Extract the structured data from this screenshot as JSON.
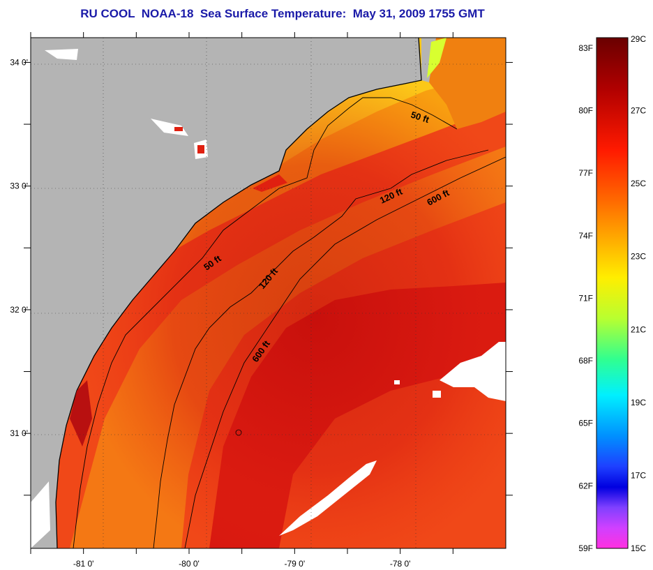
{
  "title": "RU COOL  NOAA-18  Sea Surface Temperature:  May 31, 2009 1755 GMT",
  "map": {
    "lon_range": [
      -81.5,
      -77.0
    ],
    "lat_range": [
      30.07,
      34.2
    ],
    "lon_ticks": [
      {
        "value": -81,
        "label": "-81 0'"
      },
      {
        "value": -80,
        "label": "-80 0'"
      },
      {
        "value": -79,
        "label": "-79 0'"
      },
      {
        "value": -78,
        "label": "-78 0'"
      }
    ],
    "lat_ticks": [
      {
        "value": 34,
        "label": "34 0'"
      },
      {
        "value": 33,
        "label": "33 0'"
      },
      {
        "value": 32,
        "label": "32 0'"
      },
      {
        "value": 31,
        "label": "31 0'"
      }
    ],
    "contour_labels": [
      "50 ft",
      "120 ft",
      "600 ft",
      "50 ft",
      "120 ft",
      "600 ft"
    ],
    "colors": {
      "land": "#b4b4b4",
      "cloud": "#ffffff",
      "coast": "#000000"
    }
  },
  "colorbar": {
    "celsius": [
      "29C",
      "27C",
      "25C",
      "23C",
      "21C",
      "19C",
      "17C",
      "15C"
    ],
    "fahrenheit": [
      "83F",
      "80F",
      "77F",
      "74F",
      "71F",
      "68F",
      "65F",
      "62F",
      "59F"
    ],
    "stops": [
      "#7a0000",
      "#c80000",
      "#ff2000",
      "#ff6a00",
      "#ffb000",
      "#ffee00",
      "#c8ff20",
      "#40ff90",
      "#00ffff",
      "#0090ff",
      "#2040ff",
      "#1010e0",
      "#8040ff",
      "#e040ff",
      "#ff30e0"
    ]
  }
}
